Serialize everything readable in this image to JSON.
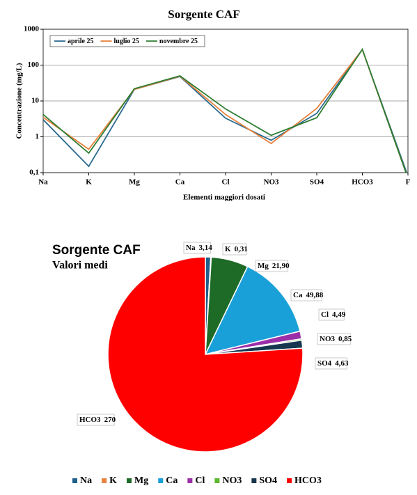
{
  "chart_data": [
    {
      "type": "line",
      "title": "Sorgente CAF",
      "y_label": "Concentrazione  (mg/L)",
      "x_label": "Elementi maggiori dosati",
      "categories": [
        "Na",
        "K",
        "Mg",
        "Ca",
        "Cl",
        "NO3",
        "SO4",
        "HCO3",
        "F"
      ],
      "log_scale": true,
      "grid": true,
      "legend": "top-left",
      "ylim": [
        0.1,
        1000
      ],
      "yticks": [
        {
          "value": 0.1,
          "label": "0,1"
        },
        1,
        10,
        100,
        1000
      ],
      "series": [
        {
          "name": "aprile 25",
          "color": "#2b6a8f",
          "values": [
            3.0,
            0.15,
            21,
            48,
            3.3,
            0.8,
            4.5,
            270,
            0.08
          ]
        },
        {
          "name": "luglio 25",
          "color": "#e8823e",
          "values": [
            3.5,
            0.45,
            21,
            49,
            4.2,
            0.65,
            6.2,
            270,
            0.07
          ]
        },
        {
          "name": "novembre 25",
          "color": "#2e7d32",
          "values": [
            4.2,
            0.35,
            22,
            50,
            6.0,
            1.1,
            3.4,
            275,
            0.07
          ]
        }
      ]
    },
    {
      "type": "pie",
      "title": "Sorgente CAF",
      "subtitle": "Valori medi",
      "legend": "bottom",
      "categories": [
        "Na",
        "K",
        "Mg",
        "Ca",
        "Cl",
        "NO3",
        "SO4",
        "HCO3"
      ],
      "values": [
        3.14,
        0.31,
        21.9,
        49.88,
        4.49,
        0.85,
        4.63,
        270
      ],
      "value_labels": [
        "3,14",
        "0,31",
        "21,90",
        "49,88",
        "4,49",
        "0,85",
        "4,63",
        "270"
      ],
      "colors": [
        "#1f5f8b",
        "#e8823e",
        "#1e6b28",
        "#1aa0d8",
        "#9b2fa8",
        "#5cb82e",
        "#17364f",
        "#ff0000"
      ]
    }
  ]
}
